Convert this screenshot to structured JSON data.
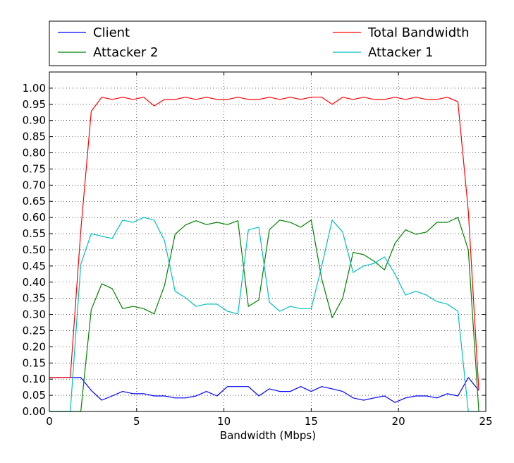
{
  "chart_data": {
    "type": "line",
    "xlabel": "Bandwidth (Mbps)",
    "ylabel": "",
    "xlim": [
      0,
      25
    ],
    "ylim": [
      0,
      1.05
    ],
    "xticks": [
      0,
      5,
      10,
      15,
      20,
      25
    ],
    "xtick_labels": [
      "0",
      "5",
      "10",
      "15",
      "20",
      "25"
    ],
    "yticks": [
      0,
      0.05,
      0.1,
      0.15,
      0.2,
      0.25,
      0.3,
      0.35,
      0.4,
      0.45,
      0.5,
      0.55,
      0.6,
      0.65,
      0.7,
      0.75,
      0.8,
      0.85,
      0.9,
      0.95,
      1.0
    ],
    "ytick_labels": [
      "0.00",
      "0.05",
      "0.10",
      "0.15",
      "0.20",
      "0.25",
      "0.30",
      "0.35",
      "0.40",
      "0.45",
      "0.50",
      "0.55",
      "0.60",
      "0.65",
      "0.70",
      "0.75",
      "0.80",
      "0.85",
      "0.90",
      "0.95",
      "1.00"
    ],
    "grid": true,
    "grid_style": "dotted",
    "legend_placement": "above plot, two columns",
    "x": [
      0,
      0.3,
      0.6,
      0.9,
      1.2,
      1.8,
      2.4,
      3.0,
      3.6,
      4.2,
      4.8,
      5.4,
      6.0,
      6.6,
      7.2,
      7.8,
      8.4,
      9.0,
      9.6,
      10.2,
      10.8,
      11.4,
      12.0,
      12.6,
      13.2,
      13.8,
      14.4,
      15.0,
      15.6,
      16.2,
      16.8,
      17.4,
      18.0,
      18.6,
      19.2,
      19.8,
      20.4,
      21.0,
      21.6,
      22.2,
      22.8,
      23.4,
      24.0,
      24.6
    ],
    "series": [
      {
        "name": "Client",
        "color": "#0000ff",
        "values": [
          0.105,
          0.105,
          0.105,
          0.105,
          0.105,
          0.105,
          0.065,
          0.035,
          0.048,
          0.062,
          0.055,
          0.055,
          0.048,
          0.048,
          0.042,
          0.042,
          0.048,
          0.062,
          0.048,
          0.077,
          0.077,
          0.077,
          0.048,
          0.07,
          0.062,
          0.062,
          0.077,
          0.062,
          0.077,
          0.07,
          0.062,
          0.042,
          0.035,
          0.042,
          0.048,
          0.028,
          0.042,
          0.048,
          0.048,
          0.042,
          0.055,
          0.048,
          0.105,
          0.065
        ]
      },
      {
        "name": "Attacker 2",
        "color": "#008000",
        "values": [
          0.0,
          0.0,
          0.0,
          0.0,
          0.0,
          0.0,
          0.315,
          0.395,
          0.38,
          0.318,
          0.325,
          0.318,
          0.302,
          0.39,
          0.548,
          0.577,
          0.59,
          0.578,
          0.585,
          0.578,
          0.59,
          0.325,
          0.345,
          0.562,
          0.592,
          0.585,
          0.57,
          0.592,
          0.41,
          0.29,
          0.35,
          0.492,
          0.485,
          0.465,
          0.438,
          0.52,
          0.562,
          0.548,
          0.555,
          0.585,
          0.585,
          0.6,
          0.5,
          0.0
        ]
      },
      {
        "name": "Total Bandwidth",
        "color": "#ff0000",
        "values": [
          0.105,
          0.105,
          0.105,
          0.105,
          0.105,
          0.56,
          0.928,
          0.972,
          0.965,
          0.972,
          0.965,
          0.972,
          0.945,
          0.965,
          0.965,
          0.972,
          0.965,
          0.972,
          0.965,
          0.965,
          0.972,
          0.965,
          0.965,
          0.972,
          0.965,
          0.972,
          0.965,
          0.972,
          0.972,
          0.95,
          0.972,
          0.965,
          0.972,
          0.965,
          0.965,
          0.972,
          0.965,
          0.972,
          0.965,
          0.965,
          0.972,
          0.958,
          0.62,
          0.065
        ]
      },
      {
        "name": "Attacker 1",
        "color": "#00bfbf",
        "values": [
          0.0,
          0.0,
          0.0,
          0.0,
          0.0,
          0.455,
          0.55,
          0.542,
          0.535,
          0.592,
          0.585,
          0.6,
          0.592,
          0.528,
          0.372,
          0.352,
          0.325,
          0.332,
          0.332,
          0.31,
          0.302,
          0.562,
          0.57,
          0.338,
          0.31,
          0.325,
          0.318,
          0.318,
          0.45,
          0.592,
          0.555,
          0.43,
          0.45,
          0.458,
          0.478,
          0.425,
          0.36,
          0.372,
          0.36,
          0.34,
          0.332,
          0.31,
          0.0,
          0.0
        ]
      }
    ]
  },
  "legend_order": [
    "Client",
    "Total Bandwidth",
    "Attacker 2",
    "Attacker 1"
  ]
}
